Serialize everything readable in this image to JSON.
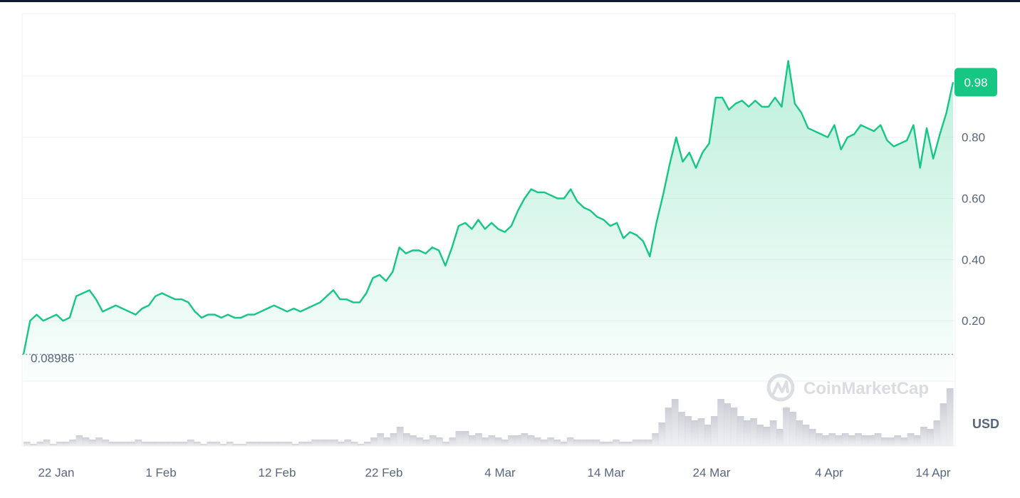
{
  "chart_data": {
    "type": "area",
    "x_ticks": [
      "22 Jan",
      "1 Feb",
      "12 Feb",
      "22 Feb",
      "4 Mar",
      "14 Mar",
      "24 Mar",
      "4 Apr",
      "14 Apr"
    ],
    "y_ticks": [
      0.2,
      0.4,
      0.6,
      0.8
    ],
    "y_tick_labels": [
      "0.20",
      "0.40",
      "0.60",
      "0.80"
    ],
    "ylim": [
      0,
      1.2
    ],
    "start_label": "0.08986",
    "start_value": 0.08986,
    "current_label": "0.98",
    "current_value": 0.98,
    "currency_label": "USD",
    "watermark": "CoinMarketCap",
    "line_color": "#16c784",
    "grid": true,
    "series": [
      {
        "values": [
          0.09,
          0.2,
          0.22,
          0.2,
          0.21,
          0.22,
          0.2,
          0.21,
          0.28,
          0.29,
          0.3,
          0.27,
          0.23,
          0.24,
          0.25,
          0.24,
          0.23,
          0.22,
          0.24,
          0.25,
          0.28,
          0.29,
          0.28,
          0.27,
          0.27,
          0.26,
          0.23,
          0.21,
          0.22,
          0.22,
          0.21,
          0.22,
          0.21,
          0.21,
          0.22,
          0.22,
          0.23,
          0.24,
          0.25,
          0.24,
          0.23,
          0.24,
          0.23,
          0.24,
          0.25,
          0.26,
          0.28,
          0.3,
          0.27,
          0.27,
          0.26,
          0.26,
          0.29,
          0.34,
          0.35,
          0.33,
          0.36,
          0.44,
          0.42,
          0.43,
          0.43,
          0.42,
          0.44,
          0.43,
          0.38,
          0.44,
          0.51,
          0.52,
          0.5,
          0.53,
          0.5,
          0.52,
          0.5,
          0.49,
          0.51,
          0.56,
          0.6,
          0.63,
          0.62,
          0.62,
          0.61,
          0.6,
          0.6,
          0.63,
          0.59,
          0.57,
          0.56,
          0.54,
          0.53,
          0.51,
          0.52,
          0.47,
          0.49,
          0.48,
          0.46,
          0.41,
          0.52,
          0.61,
          0.71,
          0.8,
          0.72,
          0.75,
          0.7,
          0.75,
          0.78,
          0.93,
          0.93,
          0.89,
          0.91,
          0.92,
          0.9,
          0.92,
          0.9,
          0.9,
          0.93,
          0.9,
          1.05,
          0.91,
          0.88,
          0.83,
          0.82,
          0.81,
          0.8,
          0.84,
          0.76,
          0.8,
          0.81,
          0.84,
          0.83,
          0.82,
          0.84,
          0.79,
          0.77,
          0.78,
          0.79,
          0.84,
          0.7,
          0.83,
          0.73,
          0.81,
          0.88,
          0.98
        ]
      }
    ],
    "volume": [
      0.02,
      0.01,
      0.02,
      0.03,
      0.01,
      0.02,
      0.02,
      0.03,
      0.05,
      0.04,
      0.03,
      0.04,
      0.03,
      0.02,
      0.02,
      0.02,
      0.02,
      0.03,
      0.02,
      0.02,
      0.02,
      0.02,
      0.02,
      0.02,
      0.02,
      0.03,
      0.02,
      0.01,
      0.02,
      0.02,
      0.01,
      0.02,
      0.01,
      0.01,
      0.02,
      0.02,
      0.02,
      0.02,
      0.02,
      0.02,
      0.02,
      0.01,
      0.02,
      0.02,
      0.03,
      0.03,
      0.03,
      0.03,
      0.02,
      0.03,
      0.02,
      0.01,
      0.02,
      0.04,
      0.06,
      0.04,
      0.06,
      0.09,
      0.06,
      0.05,
      0.04,
      0.03,
      0.05,
      0.04,
      0.02,
      0.04,
      0.07,
      0.07,
      0.05,
      0.06,
      0.04,
      0.05,
      0.04,
      0.03,
      0.05,
      0.05,
      0.06,
      0.05,
      0.04,
      0.03,
      0.04,
      0.03,
      0.02,
      0.04,
      0.03,
      0.03,
      0.03,
      0.03,
      0.02,
      0.02,
      0.03,
      0.02,
      0.02,
      0.03,
      0.03,
      0.03,
      0.06,
      0.11,
      0.18,
      0.22,
      0.16,
      0.14,
      0.12,
      0.13,
      0.1,
      0.14,
      0.22,
      0.2,
      0.18,
      0.14,
      0.12,
      0.13,
      0.1,
      0.09,
      0.12,
      0.08,
      0.18,
      0.16,
      0.12,
      0.1,
      0.08,
      0.06,
      0.05,
      0.06,
      0.05,
      0.06,
      0.05,
      0.06,
      0.05,
      0.05,
      0.06,
      0.04,
      0.04,
      0.05,
      0.04,
      0.06,
      0.05,
      0.09,
      0.08,
      0.12,
      0.2,
      0.27
    ]
  }
}
